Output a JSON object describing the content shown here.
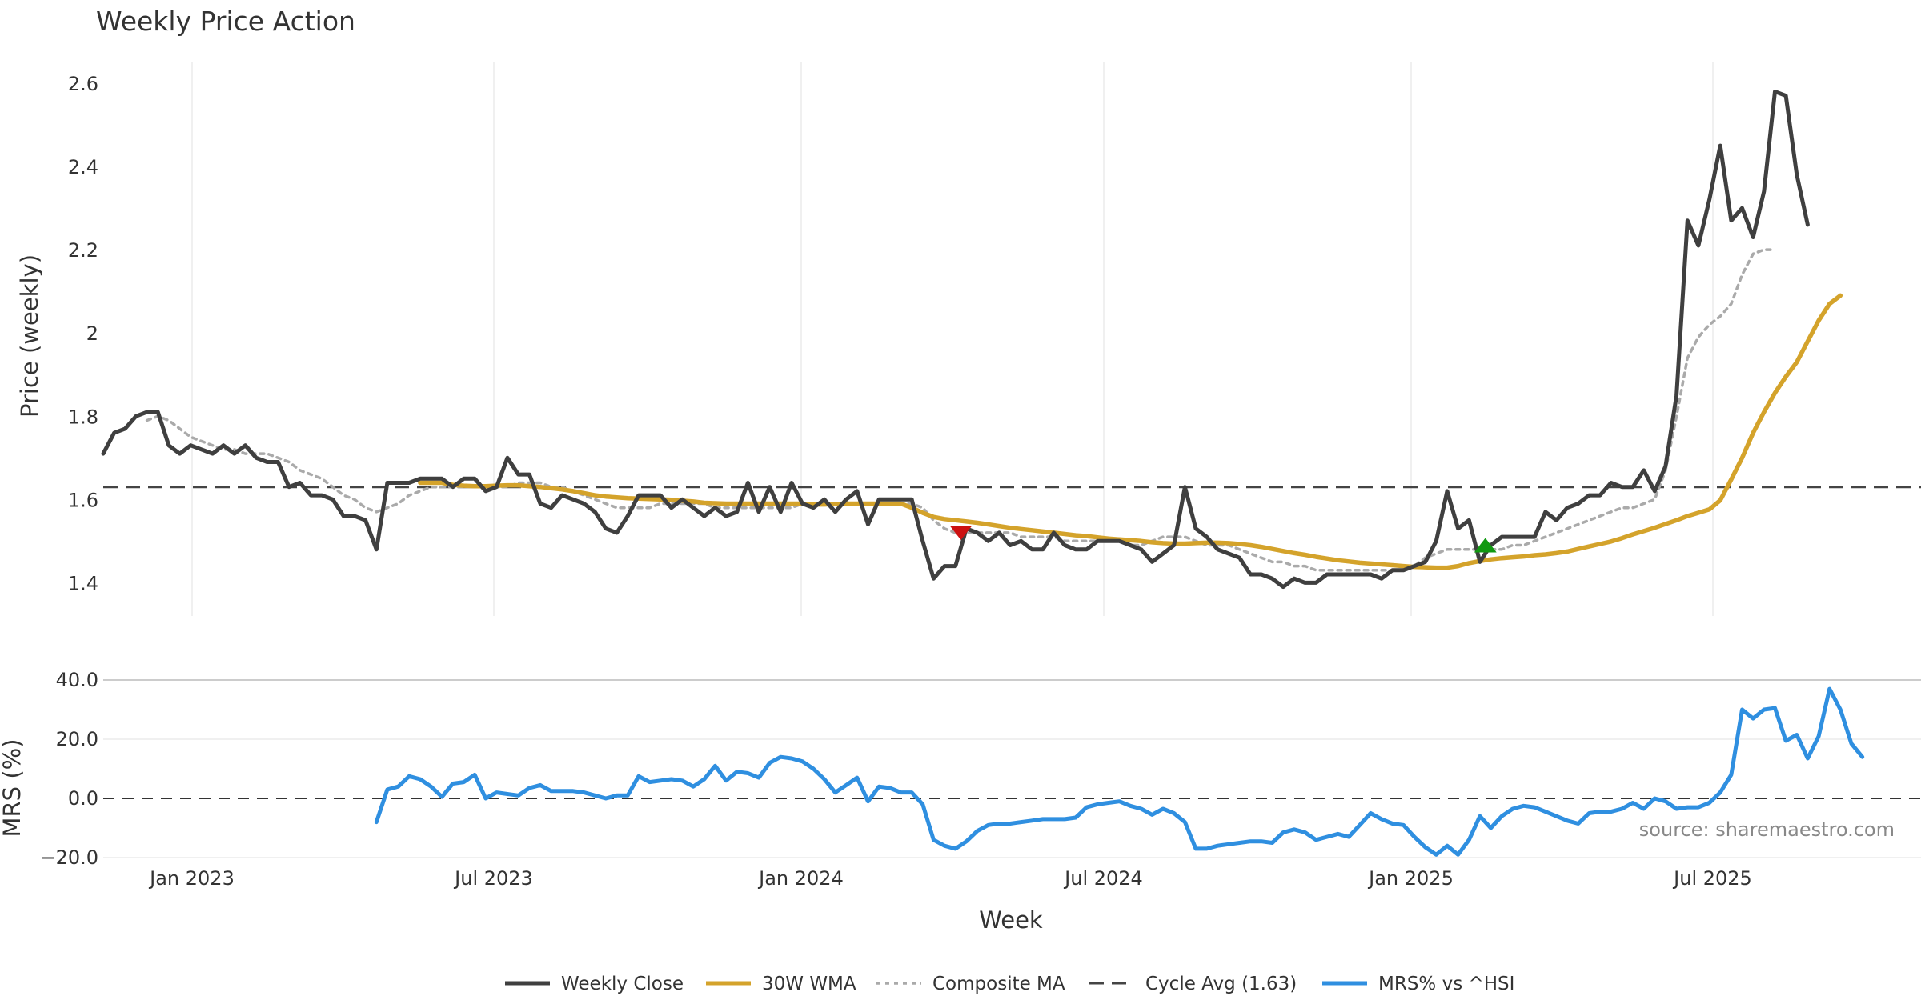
{
  "chart_data": {
    "title": "Weekly Price Action",
    "source_note": "source: sharemaestro.com",
    "xlabel": "Week",
    "x_ticks": [
      "Jan 2023",
      "Jul 2023",
      "Jan 2024",
      "Jul 2024",
      "Jan 2025",
      "Jul 2025"
    ],
    "price_panel": {
      "type": "line",
      "ylabel": "Price (weekly)",
      "ylim": [
        1.32,
        2.65
      ],
      "y_ticks": [
        1.4,
        1.6,
        1.8,
        2.0,
        2.2,
        2.4,
        2.6
      ],
      "y_tick_labels": [
        "1.4",
        "1.6",
        "1.8",
        "2",
        "2.2",
        "2.4",
        "2.6"
      ],
      "cycle_avg": 1.63,
      "series": [
        {
          "name": "Weekly Close",
          "color": "#3f3f3f",
          "start_week": 0,
          "values": [
            1.71,
            1.76,
            1.77,
            1.8,
            1.81,
            1.81,
            1.73,
            1.71,
            1.73,
            1.72,
            1.71,
            1.73,
            1.71,
            1.73,
            1.7,
            1.69,
            1.69,
            1.63,
            1.64,
            1.61,
            1.61,
            1.6,
            1.56,
            1.56,
            1.55,
            1.48,
            1.64,
            1.64,
            1.64,
            1.65,
            1.65,
            1.65,
            1.63,
            1.65,
            1.65,
            1.62,
            1.63,
            1.7,
            1.66,
            1.66,
            1.59,
            1.58,
            1.61,
            1.6,
            1.59,
            1.57,
            1.53,
            1.52,
            1.56,
            1.61,
            1.61,
            1.61,
            1.58,
            1.6,
            1.58,
            1.56,
            1.58,
            1.56,
            1.57,
            1.64,
            1.57,
            1.63,
            1.57,
            1.64,
            1.59,
            1.58,
            1.6,
            1.57,
            1.6,
            1.62,
            1.54,
            1.6,
            1.6,
            1.6,
            1.6,
            1.5,
            1.41,
            1.44,
            1.44,
            1.53,
            1.52,
            1.5,
            1.52,
            1.49,
            1.5,
            1.48,
            1.48,
            1.52,
            1.49,
            1.48,
            1.48,
            1.5,
            1.5,
            1.5,
            1.49,
            1.48,
            1.45,
            1.47,
            1.49,
            1.63,
            1.53,
            1.51,
            1.48,
            1.47,
            1.46,
            1.42,
            1.42,
            1.41,
            1.39,
            1.41,
            1.4,
            1.4,
            1.42,
            1.42,
            1.42,
            1.42,
            1.42,
            1.41,
            1.43,
            1.43,
            1.44,
            1.45,
            1.5,
            1.62,
            1.53,
            1.55,
            1.45,
            1.49,
            1.51,
            1.51,
            1.51,
            1.51,
            1.57,
            1.55,
            1.58,
            1.59,
            1.61,
            1.61,
            1.64,
            1.63,
            1.63,
            1.67,
            1.62,
            1.68,
            1.85,
            2.27,
            2.21,
            2.32,
            2.45,
            2.27,
            2.3,
            2.23,
            2.34,
            2.58,
            2.57,
            2.38,
            2.26
          ]
        },
        {
          "name": "30W WMA",
          "color": "#d4a32b",
          "start_week": 29,
          "values": [
            1.64,
            1.64,
            1.64,
            1.635,
            1.633,
            1.632,
            1.632,
            1.633,
            1.634,
            1.634,
            1.632,
            1.63,
            1.627,
            1.624,
            1.62,
            1.615,
            1.61,
            1.607,
            1.605,
            1.603,
            1.602,
            1.601,
            1.6,
            1.599,
            1.597,
            1.595,
            1.592,
            1.591,
            1.59,
            1.59,
            1.59,
            1.59,
            1.59,
            1.59,
            1.59,
            1.59,
            1.588,
            1.588,
            1.589,
            1.59,
            1.59,
            1.59,
            1.59,
            1.59,
            1.59,
            1.58,
            1.568,
            1.558,
            1.553,
            1.55,
            1.547,
            1.544,
            1.54,
            1.536,
            1.532,
            1.529,
            1.526,
            1.523,
            1.52,
            1.517,
            1.514,
            1.512,
            1.509,
            1.506,
            1.504,
            1.502,
            1.5,
            1.497,
            1.495,
            1.494,
            1.494,
            1.495,
            1.496,
            1.496,
            1.495,
            1.493,
            1.49,
            1.486,
            1.481,
            1.476,
            1.471,
            1.467,
            1.462,
            1.458,
            1.454,
            1.451,
            1.448,
            1.446,
            1.444,
            1.442,
            1.44,
            1.438,
            1.437,
            1.436,
            1.436,
            1.44,
            1.447,
            1.452,
            1.456,
            1.459,
            1.461,
            1.463,
            1.466,
            1.468,
            1.471,
            1.475,
            1.481,
            1.487,
            1.493,
            1.499,
            1.507,
            1.516,
            1.524,
            1.532,
            1.541,
            1.55,
            1.56,
            1.568,
            1.576,
            1.598,
            1.648,
            1.7,
            1.76,
            1.81,
            1.856,
            1.895,
            1.93,
            1.98,
            2.03,
            2.07,
            2.09
          ]
        },
        {
          "name": "Composite MA",
          "color": "#aaaaaa",
          "start_week": 4,
          "values": [
            1.79,
            1.8,
            1.79,
            1.77,
            1.75,
            1.74,
            1.73,
            1.72,
            1.72,
            1.71,
            1.71,
            1.71,
            1.7,
            1.69,
            1.67,
            1.66,
            1.65,
            1.63,
            1.61,
            1.6,
            1.58,
            1.57,
            1.58,
            1.59,
            1.61,
            1.62,
            1.63,
            1.63,
            1.63,
            1.63,
            1.63,
            1.63,
            1.63,
            1.63,
            1.64,
            1.64,
            1.64,
            1.63,
            1.63,
            1.62,
            1.61,
            1.6,
            1.59,
            1.58,
            1.58,
            1.58,
            1.58,
            1.59,
            1.59,
            1.59,
            1.59,
            1.59,
            1.58,
            1.58,
            1.58,
            1.58,
            1.58,
            1.58,
            1.58,
            1.58,
            1.59,
            1.59,
            1.59,
            1.59,
            1.59,
            1.59,
            1.59,
            1.59,
            1.59,
            1.59,
            1.59,
            1.58,
            1.55,
            1.53,
            1.52,
            1.52,
            1.52,
            1.52,
            1.52,
            1.52,
            1.51,
            1.51,
            1.51,
            1.51,
            1.5,
            1.5,
            1.5,
            1.5,
            1.5,
            1.5,
            1.49,
            1.49,
            1.5,
            1.51,
            1.51,
            1.51,
            1.5,
            1.49,
            1.49,
            1.49,
            1.48,
            1.47,
            1.46,
            1.45,
            1.45,
            1.44,
            1.44,
            1.43,
            1.43,
            1.43,
            1.43,
            1.43,
            1.43,
            1.43,
            1.43,
            1.43,
            1.44,
            1.46,
            1.47,
            1.48,
            1.48,
            1.48,
            1.48,
            1.48,
            1.48,
            1.49,
            1.49,
            1.5,
            1.51,
            1.52,
            1.53,
            1.54,
            1.55,
            1.56,
            1.57,
            1.58,
            1.58,
            1.59,
            1.6,
            1.67,
            1.8,
            1.94,
            1.99,
            2.02,
            2.04,
            2.07,
            2.14,
            2.19,
            2.2,
            2.2
          ]
        }
      ],
      "signals": [
        {
          "type": "sell",
          "week": 78.5,
          "value": 1.52,
          "color": "#cc1111"
        },
        {
          "type": "buy",
          "week": 126.5,
          "value": 1.49,
          "color": "#119911"
        }
      ]
    },
    "mrs_panel": {
      "type": "line",
      "ylabel": "MRS (%)",
      "ylim": [
        -20,
        40
      ],
      "y_ticks": [
        40,
        20,
        0,
        -20
      ],
      "y_tick_labels": [
        "40.0",
        "20.0",
        "0.0",
        "−20.0"
      ],
      "series": [
        {
          "name": "MRS% vs ^HSI",
          "color": "#2f8fe0",
          "start_week": 25,
          "values": [
            -8,
            3,
            4,
            7.5,
            6.5,
            4,
            0.5,
            5,
            5.5,
            8,
            0,
            2,
            1.5,
            1,
            3.5,
            4.5,
            2.5,
            2.5,
            2.5,
            2,
            1,
            0,
            1,
            1,
            7.5,
            5.5,
            6,
            6.5,
            6,
            4,
            6.5,
            11,
            6,
            9,
            8.5,
            7,
            12,
            14,
            13.5,
            12.5,
            10,
            6.5,
            2,
            4.5,
            7,
            -1,
            4,
            3.5,
            2,
            2,
            -2,
            -14,
            -16,
            -17,
            -14.5,
            -11,
            -9,
            -8.5,
            -8.5,
            -8,
            -7.5,
            -7,
            -7,
            -7,
            -6.5,
            -3,
            -2,
            -1.5,
            -1,
            -2.5,
            -3.5,
            -5.5,
            -3.5,
            -5,
            -8,
            -17,
            -17,
            -16,
            -15.5,
            -15,
            -14.5,
            -14.5,
            -15,
            -11.5,
            -10.5,
            -11.5,
            -14,
            -13,
            -12,
            -13,
            -9,
            -5,
            -7,
            -8.5,
            -9,
            -13,
            -16.5,
            -19,
            -16,
            -19,
            -14,
            -6,
            -10,
            -6,
            -3.5,
            -2.5,
            -3,
            -4.5,
            -6,
            -7.5,
            -8.5,
            -5,
            -4.5,
            -4.5,
            -3.5,
            -1.5,
            -3.5,
            0,
            -1,
            -3.5,
            -3,
            -3,
            -1.5,
            2,
            8,
            30,
            27,
            30,
            30.5,
            19.5,
            21.5,
            13.5,
            21,
            37,
            30,
            18.5,
            14
          ]
        }
      ]
    },
    "legend": [
      {
        "label": "Weekly Close",
        "style": "solid",
        "color": "#3f3f3f"
      },
      {
        "label": "30W WMA",
        "style": "solid",
        "color": "#d4a32b"
      },
      {
        "label": "Composite MA",
        "style": "dotted",
        "color": "#aaaaaa"
      },
      {
        "label": "Cycle Avg (1.63)",
        "style": "dashed",
        "color": "#444444"
      },
      {
        "label": "MRS% vs ^HSI",
        "style": "solid",
        "color": "#2f8fe0"
      }
    ]
  }
}
